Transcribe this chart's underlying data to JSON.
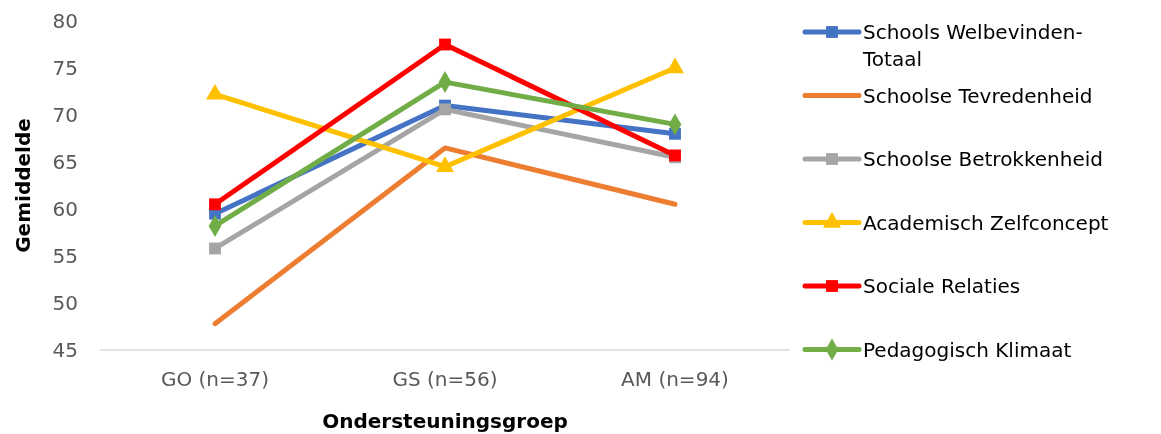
{
  "chart_data": {
    "type": "line",
    "xlabel": "Ondersteuningsgroep",
    "ylabel": "Gemiddelde",
    "categories": [
      "GO (n=37)",
      "GS (n=56)",
      "AM (n=94)"
    ],
    "ylim": [
      45,
      80
    ],
    "yticks": [
      45,
      50,
      55,
      60,
      65,
      70,
      75,
      80
    ],
    "grid": false,
    "legend": "right",
    "series": [
      {
        "name": "Schools Welbevinden-Totaal",
        "color": "#4472c4",
        "marker": "square",
        "values": [
          59.5,
          71,
          68
        ]
      },
      {
        "name": "Schoolse Tevredenheid",
        "color": "#ed7d31",
        "marker": "none",
        "values": [
          47.8,
          66.5,
          60.5
        ]
      },
      {
        "name": "Schoolse Betrokkenheid",
        "color": "#a5a5a5",
        "marker": "square",
        "values": [
          55.8,
          70.6,
          65.5
        ]
      },
      {
        "name": "Academisch Zelfconcept",
        "color": "#ffc000",
        "marker": "triangle",
        "values": [
          72.2,
          64.5,
          75
        ]
      },
      {
        "name": "Sociale Relaties",
        "color": "#ff0000",
        "marker": "square",
        "values": [
          60.5,
          77.5,
          65.7
        ]
      },
      {
        "name": "Pedagogisch Klimaat",
        "color": "#70ad47",
        "marker": "diamond",
        "values": [
          58.2,
          73.5,
          69
        ]
      }
    ]
  }
}
